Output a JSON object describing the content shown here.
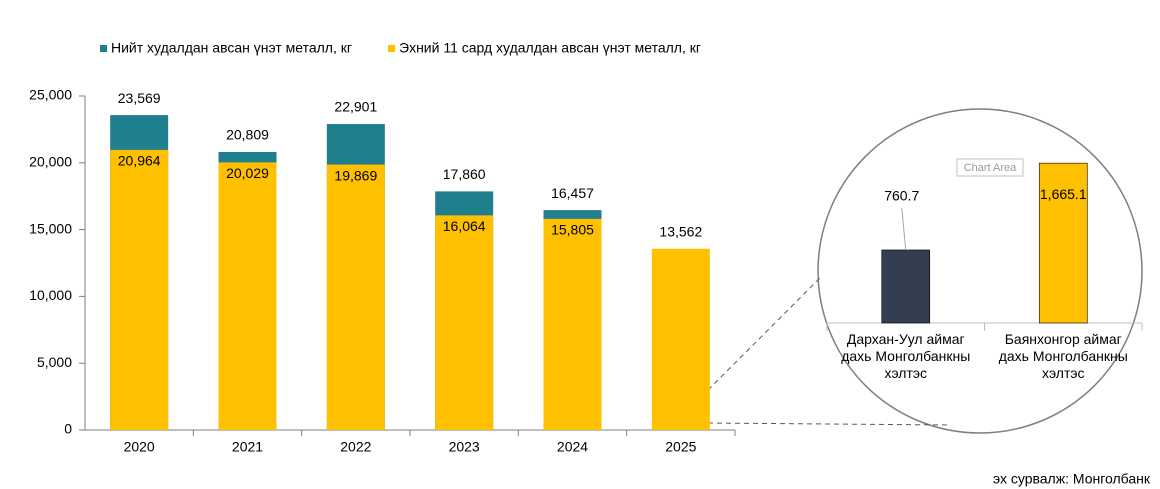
{
  "chart_data": [
    {
      "type": "bar",
      "categories": [
        "2020",
        "2021",
        "2022",
        "2023",
        "2024",
        "2025"
      ],
      "series": [
        {
          "name": "Нийт худалдан авсан үнэт металл, кг",
          "color": "#1f7f8c",
          "values": [
            23569,
            20809,
            22901,
            17860,
            16457,
            null
          ],
          "value_labels": [
            "23,569",
            "20,809",
            "22,901",
            "17,860",
            "16,457",
            null
          ]
        },
        {
          "name": "Эхний 11 сард худалдан авсан үнэт металл, кг",
          "color": "#ffc000",
          "values": [
            20964,
            20029,
            19869,
            16064,
            15805,
            13562
          ],
          "value_labels": [
            "20,964",
            "20,029",
            "19,869",
            "16,064",
            "15,805",
            "13,562"
          ]
        }
      ],
      "ylim": [
        0,
        25000
      ],
      "yticks": [
        0,
        {
          "value": 5000,
          "label": "5,000"
        },
        {
          "value": 10000,
          "label": "10,000"
        },
        {
          "value": 15000,
          "label": "15,000"
        },
        {
          "value": 20000,
          "label": "20,000"
        },
        {
          "value": 25000,
          "label": "25,000"
        }
      ],
      "legend": "top",
      "source": "эх сурвалж: Монголбанк"
    },
    {
      "type": "bar",
      "categories": [
        "Дархан-Уул аймаг дахь Монголбанкны хэлтэс",
        "Баянхонгор аймаг дахь Монголбанкны хэлтэс"
      ],
      "values": [
        760.7,
        1665.1
      ],
      "value_labels": [
        "760.7",
        "1,665.1"
      ],
      "colors": [
        "#333f50",
        "#ffc000"
      ],
      "ylim": [
        0,
        2000
      ],
      "annotation": "Chart Area"
    }
  ]
}
